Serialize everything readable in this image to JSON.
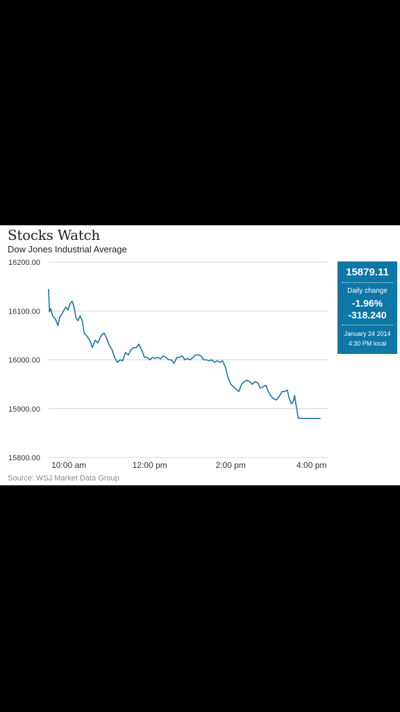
{
  "header": {
    "title": "Stocks Watch",
    "subtitle": "Dow Jones Industrial Average"
  },
  "source": "Source: WSJ Market Data Group",
  "info_box": {
    "last_value": "15879.11",
    "change_label": "Daily change",
    "change_pct": "-1.96%",
    "change_pts": "-318.240",
    "date": "January 24 2014",
    "time": "4:30 PM local"
  },
  "colors": {
    "line": "#1a72a0",
    "info_box": "#0f77a6",
    "grid": "#d3d3d3"
  },
  "chart_data": {
    "type": "line",
    "title": "Stocks Watch",
    "subtitle": "Dow Jones Industrial Average",
    "xlabel": "",
    "ylabel": "",
    "x_unit": "hours (decimal, local time)",
    "xlim": [
      9.5,
      16.4
    ],
    "ylim": [
      15800,
      16200
    ],
    "yticks": [
      16200,
      16100,
      16000,
      15900,
      15800
    ],
    "ytick_labels": [
      "16200.00",
      "16100.00",
      "16000.00",
      "15900.00",
      "15800.00"
    ],
    "xticks": [
      10,
      12,
      14,
      16
    ],
    "xtick_labels": [
      "10:00 am",
      "12:00 pm",
      "2:00 pm",
      "4:00 pm"
    ],
    "grid": true,
    "series": [
      {
        "values": [
          [
            9.5,
            16145
          ],
          [
            9.52,
            16098
          ],
          [
            9.55,
            16105
          ],
          [
            9.6,
            16090
          ],
          [
            9.67,
            16083
          ],
          [
            9.73,
            16070
          ],
          [
            9.78,
            16088
          ],
          [
            9.85,
            16097
          ],
          [
            9.92,
            16108
          ],
          [
            9.98,
            16102
          ],
          [
            10.03,
            16115
          ],
          [
            10.08,
            16120
          ],
          [
            10.13,
            16108
          ],
          [
            10.18,
            16085
          ],
          [
            10.23,
            16080
          ],
          [
            10.28,
            16090
          ],
          [
            10.33,
            16080
          ],
          [
            10.38,
            16055
          ],
          [
            10.45,
            16048
          ],
          [
            10.52,
            16040
          ],
          [
            10.58,
            16025
          ],
          [
            10.65,
            16040
          ],
          [
            10.72,
            16035
          ],
          [
            10.8,
            16050
          ],
          [
            10.87,
            16055
          ],
          [
            10.93,
            16045
          ],
          [
            11.0,
            16030
          ],
          [
            11.07,
            16020
          ],
          [
            11.13,
            16005
          ],
          [
            11.2,
            15995
          ],
          [
            11.27,
            16000
          ],
          [
            11.33,
            15998
          ],
          [
            11.4,
            16015
          ],
          [
            11.47,
            16010
          ],
          [
            11.53,
            16020
          ],
          [
            11.6,
            16025
          ],
          [
            11.67,
            16025
          ],
          [
            11.73,
            16032
          ],
          [
            11.8,
            16020
          ],
          [
            11.87,
            16005
          ],
          [
            11.93,
            16005
          ],
          [
            12.0,
            16000
          ],
          [
            12.07,
            16005
          ],
          [
            12.13,
            16003
          ],
          [
            12.2,
            16005
          ],
          [
            12.27,
            16002
          ],
          [
            12.33,
            16008
          ],
          [
            12.4,
            16005
          ],
          [
            12.47,
            16000
          ],
          [
            12.53,
            16000
          ],
          [
            12.6,
            15993
          ],
          [
            12.67,
            16005
          ],
          [
            12.73,
            16005
          ],
          [
            12.8,
            16008
          ],
          [
            12.87,
            16000
          ],
          [
            12.93,
            16003
          ],
          [
            13.0,
            16000
          ],
          [
            13.07,
            16005
          ],
          [
            13.13,
            16010
          ],
          [
            13.2,
            16010
          ],
          [
            13.27,
            16008
          ],
          [
            13.33,
            16000
          ],
          [
            13.4,
            16000
          ],
          [
            13.47,
            15998
          ],
          [
            13.53,
            16000
          ],
          [
            13.6,
            15995
          ],
          [
            13.67,
            15998
          ],
          [
            13.73,
            15995
          ],
          [
            13.8,
            15998
          ],
          [
            13.87,
            15985
          ],
          [
            13.93,
            15965
          ],
          [
            14.0,
            15950
          ],
          [
            14.07,
            15945
          ],
          [
            14.13,
            15940
          ],
          [
            14.2,
            15935
          ],
          [
            14.27,
            15950
          ],
          [
            14.33,
            15955
          ],
          [
            14.4,
            15958
          ],
          [
            14.47,
            15955
          ],
          [
            14.53,
            15950
          ],
          [
            14.6,
            15955
          ],
          [
            14.67,
            15953
          ],
          [
            14.73,
            15942
          ],
          [
            14.8,
            15945
          ],
          [
            14.87,
            15948
          ],
          [
            14.93,
            15935
          ],
          [
            15.0,
            15925
          ],
          [
            15.07,
            15920
          ],
          [
            15.13,
            15918
          ],
          [
            15.2,
            15925
          ],
          [
            15.27,
            15935
          ],
          [
            15.33,
            15935
          ],
          [
            15.4,
            15938
          ],
          [
            15.45,
            15920
          ],
          [
            15.5,
            15910
          ],
          [
            15.55,
            15915
          ],
          [
            15.58,
            15927
          ],
          [
            15.62,
            15905
          ],
          [
            15.67,
            15881
          ],
          [
            15.75,
            15880
          ],
          [
            15.85,
            15880
          ],
          [
            16.0,
            15880
          ],
          [
            16.15,
            15880
          ],
          [
            16.2,
            15880
          ],
          [
            16.22,
            15880
          ]
        ]
      }
    ]
  }
}
